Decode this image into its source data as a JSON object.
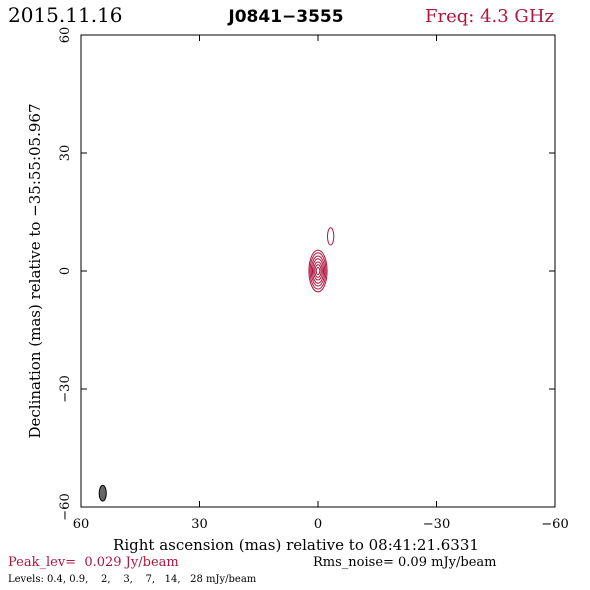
{
  "header": {
    "date": "2015.11.16",
    "source": "J0841−3555",
    "freq": "Freq: 4.3 GHz"
  },
  "footer": {
    "peak": "Peak_lev=  0.029 Jy/beam",
    "rms": "Rms_noise= 0.09 mJy/beam",
    "levels": "Levels: 0.4, 0.9,    2,    3,    7,   14,   28 mJy/beam"
  },
  "colors": {
    "contour": "#b0143f",
    "accent_text": "#b0143f",
    "beam": "#666666",
    "frame": "#000000"
  },
  "chart_data": {
    "type": "contour",
    "title": "J0841−3555",
    "xlabel": "Right ascension (mas) relative to 08:41:21.6331",
    "ylabel": "Declination (mas) relative to −35:55:05.967",
    "xlim": [
      60,
      -60
    ],
    "ylim": [
      -60,
      60
    ],
    "x_ticks": [
      60,
      30,
      0,
      -30,
      -60
    ],
    "y_ticks": [
      60,
      30,
      0,
      -30,
      -60
    ],
    "x_tick_labels": [
      "60",
      "30",
      "0",
      "−30",
      "−60"
    ],
    "y_tick_labels": [
      "60",
      "30",
      "0",
      "−30",
      "−60"
    ],
    "levels_mJy": [
      0.4,
      0.9,
      2,
      3,
      7,
      14,
      28
    ],
    "contours": [
      {
        "x": 0.0,
        "y": 0.0,
        "rx": 2.3,
        "ry": 5.3,
        "level": 0.4
      },
      {
        "x": 0.0,
        "y": 0.0,
        "rx": 2.0,
        "ry": 4.6,
        "level": 0.9
      },
      {
        "x": 0.0,
        "y": 0.0,
        "rx": 1.7,
        "ry": 3.8,
        "level": 2
      },
      {
        "x": 0.0,
        "y": 0.0,
        "rx": 1.4,
        "ry": 3.1,
        "level": 3
      },
      {
        "x": 0.0,
        "y": 0.0,
        "rx": 1.1,
        "ry": 2.3,
        "level": 7
      },
      {
        "x": 0.0,
        "y": 0.0,
        "rx": 0.8,
        "ry": 1.6,
        "level": 14
      },
      {
        "x": 0.0,
        "y": 0.0,
        "rx": 0.45,
        "ry": 0.9,
        "level": 28
      },
      {
        "x": -3.2,
        "y": 8.8,
        "rx": 0.8,
        "ry": 2.2,
        "level": 0.4
      }
    ],
    "beam": {
      "x": 54.5,
      "y": -56.5,
      "rx": 0.9,
      "ry": 2.0
    },
    "grid": false
  }
}
